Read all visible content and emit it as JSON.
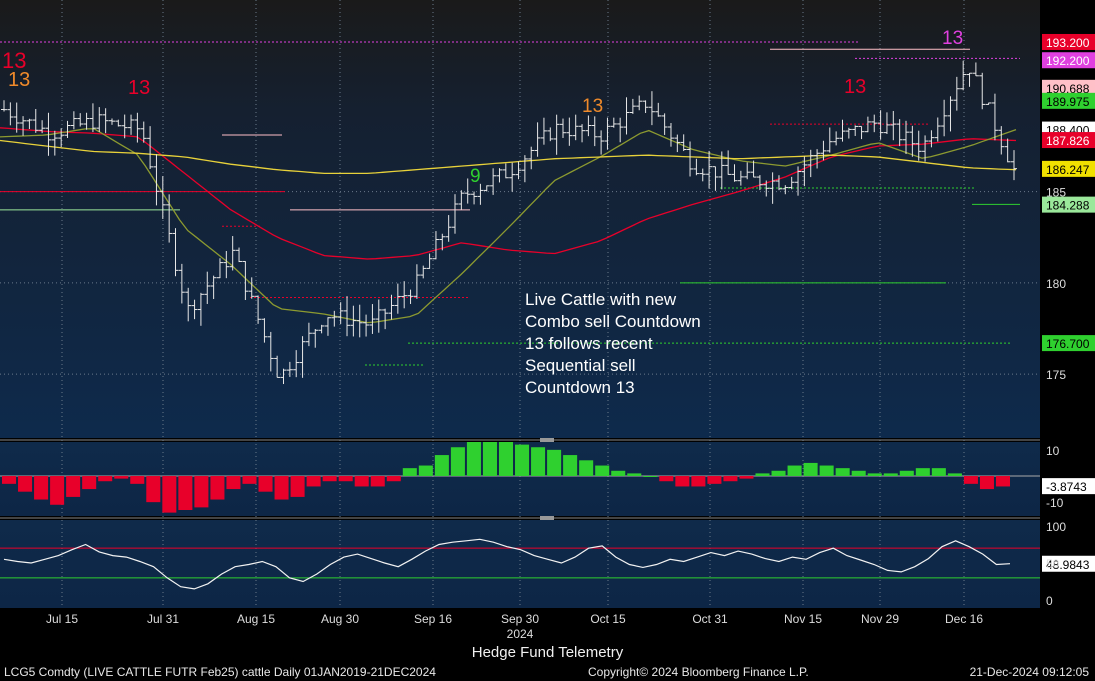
{
  "chart_data": [
    {
      "type": "candlestick",
      "title": "Live Cattle with new Combo sell Countdown 13 follows recent Sequential sell Countdown 13",
      "annotation_lines": [
        "Live Cattle with new",
        "Combo sell Countdown",
        "13 follows recent",
        "Sequential sell",
        "Countdown 13"
      ],
      "ylim": [
        171.5,
        195.5
      ],
      "y_ticks": [
        175,
        180,
        185
      ],
      "x_ticks": [
        "Jul 15",
        "Jul 31",
        "Aug 15",
        "Aug 30",
        "Sep 16",
        "Sep 30",
        "Oct 15",
        "Oct 31",
        "Nov 15",
        "Nov 29",
        "Dec 16"
      ],
      "x_year_label": "2024",
      "price_tags": [
        {
          "label": "193.200",
          "value": 193.2,
          "color": "#e8002a"
        },
        {
          "label": "192.200",
          "value": 192.2,
          "color": "#e040e0"
        },
        {
          "label": "190.688",
          "value": 190.688,
          "color": "#ffc0c8"
        },
        {
          "label": "189.975",
          "value": 189.975,
          "color": "#2fd02f"
        },
        {
          "label": "188.400",
          "value": 188.4,
          "color": "#ffffff"
        },
        {
          "label": "187.826",
          "value": 187.826,
          "color": "#e8002a"
        },
        {
          "label": "186.247",
          "value": 186.247,
          "color": "#f0e000"
        },
        {
          "label": "184.288",
          "value": 184.288,
          "color": "#9be89b"
        },
        {
          "label": "176.700",
          "value": 176.7,
          "color": "#2fd02f"
        }
      ],
      "series": [
        {
          "name": "Price",
          "x": [
            "Jul 8",
            "Jul 15",
            "Jul 22",
            "Jul 31",
            "Aug 7",
            "Aug 15",
            "Aug 22",
            "Aug 30",
            "Sep 9",
            "Sep 16",
            "Sep 23",
            "Sep 30",
            "Oct 7",
            "Oct 15",
            "Oct 23",
            "Oct 31",
            "Nov 8",
            "Nov 15",
            "Nov 22",
            "Nov 29",
            "Dec 9",
            "Dec 16",
            "Dec 20"
          ],
          "values": [
            189.5,
            188.2,
            188.9,
            188.4,
            178.5,
            181.7,
            174.8,
            178.3,
            177.7,
            180.0,
            184.8,
            186.1,
            188.5,
            188.1,
            189.9,
            186.5,
            185.7,
            185.5,
            187.8,
            188.8,
            187.4,
            192.0,
            186.2
          ]
        },
        {
          "name": "MA short",
          "color": "#e8002a",
          "values": [
            188.5,
            188.3,
            188.2,
            188.0,
            186.0,
            184.0,
            182.5,
            181.5,
            181.3,
            181.5,
            182.2,
            181.8,
            181.6,
            182.3,
            183.5,
            184.3,
            185.0,
            185.8,
            186.9,
            187.5,
            187.6,
            187.9,
            187.8
          ]
        },
        {
          "name": "MA mid",
          "color": "#8c9a30",
          "values": [
            188.0,
            188.1,
            188.5,
            187.0,
            183.0,
            181.0,
            178.6,
            178.3,
            177.8,
            178.2,
            180.5,
            183.0,
            185.6,
            186.9,
            188.4,
            187.3,
            186.7,
            186.4,
            187.0,
            187.7,
            186.8,
            187.5,
            188.4
          ]
        },
        {
          "name": "MA long",
          "color": "#e8d23a",
          "values": [
            187.8,
            187.5,
            187.2,
            187.1,
            186.9,
            186.5,
            186.2,
            186.0,
            186.0,
            186.2,
            186.4,
            186.6,
            186.8,
            186.9,
            187.0,
            186.9,
            186.8,
            186.9,
            187.0,
            186.9,
            186.6,
            186.3,
            186.2
          ]
        }
      ]
    },
    {
      "type": "bar",
      "ylim": [
        -13,
        13
      ],
      "y_ticks": [
        10,
        -10
      ],
      "last_value_label": "-3.8743",
      "values": [
        -3,
        -6,
        -9,
        -11,
        -8,
        -5,
        -2,
        -1,
        -3,
        -10,
        -14,
        -13,
        -12,
        -9,
        -5,
        -3,
        -6,
        -9,
        -8,
        -4,
        -2,
        -2,
        -4,
        -4,
        -2,
        3,
        4,
        8,
        11,
        13,
        13,
        13,
        12,
        11,
        10,
        8,
        6,
        4,
        2,
        1,
        0,
        -2,
        -4,
        -4,
        -3,
        -2,
        -1,
        1,
        2,
        4,
        5,
        4,
        3,
        2,
        1,
        1,
        2,
        3,
        3,
        1,
        -3,
        -5,
        -4
      ]
    },
    {
      "type": "line",
      "ylim": [
        -8,
        108
      ],
      "y_ticks": [
        100,
        50,
        0
      ],
      "last_value_label": "48.9843",
      "overbought": 70,
      "oversold": 30,
      "values": [
        55,
        52,
        50,
        55,
        60,
        68,
        75,
        65,
        60,
        58,
        52,
        45,
        30,
        18,
        15,
        22,
        35,
        45,
        48,
        52,
        45,
        30,
        25,
        35,
        48,
        58,
        62,
        56,
        50,
        45,
        55,
        66,
        75,
        78,
        80,
        82,
        78,
        72,
        68,
        60,
        55,
        50,
        58,
        70,
        73,
        58,
        48,
        44,
        48,
        55,
        52,
        58,
        64,
        60,
        66,
        62,
        56,
        52,
        58,
        55,
        64,
        70,
        60,
        54,
        48,
        40,
        38,
        45,
        56,
        72,
        80,
        72,
        62,
        48,
        49
      ]
    }
  ],
  "sequential_labels": [
    {
      "text": "13",
      "color": "#e8002a"
    },
    {
      "text": "13",
      "color": "#f08a2a"
    },
    {
      "text": "13",
      "color": "#e8002a"
    },
    {
      "text": "13",
      "color": "#f08a2a"
    },
    {
      "text": "13",
      "color": "#e8002a"
    },
    {
      "text": "13",
      "color": "#e040e0"
    },
    {
      "text": "9",
      "color": "#2fd02f"
    }
  ],
  "footer": {
    "subtitle": "Hedge Fund Telemetry",
    "left": "LCG5 Comdty (LIVE CATTLE FUTR  Feb25) cattle  Daily 01JAN2019-21DEC2024",
    "center": "Copyright© 2024 Bloomberg Finance L.P.",
    "right": "21-Dec-2024 09:12:05"
  },
  "colors": {
    "background_top": "#1a1a1a",
    "background_bottom": "#0d2a4a",
    "up": "#2fd02f",
    "down": "#e8002a"
  }
}
